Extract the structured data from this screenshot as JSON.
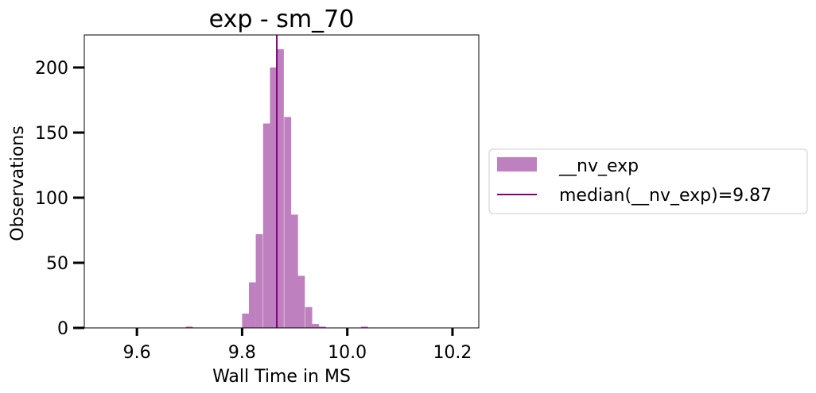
{
  "chart_data": {
    "type": "bar",
    "title": "exp - sm_70",
    "xlabel": "Wall Time in MS",
    "ylabel": "Observations",
    "xlim": [
      9.5,
      10.25
    ],
    "ylim": [
      0,
      225
    ],
    "x_ticks": [
      9.6,
      9.8,
      10.0,
      10.2
    ],
    "x_tick_labels": [
      "9.6",
      "9.8",
      "10.0",
      "10.2"
    ],
    "y_ticks": [
      0,
      50,
      100,
      150,
      200
    ],
    "y_tick_labels": [
      "0",
      "50",
      "100",
      "150",
      "200"
    ],
    "bin_width": 0.0133,
    "bins": [
      {
        "x": 9.693,
        "value": 1
      },
      {
        "x": 9.8,
        "value": 11
      },
      {
        "x": 9.813,
        "value": 35
      },
      {
        "x": 9.826,
        "value": 72
      },
      {
        "x": 9.84,
        "value": 157
      },
      {
        "x": 9.853,
        "value": 200
      },
      {
        "x": 9.866,
        "value": 214
      },
      {
        "x": 9.88,
        "value": 162
      },
      {
        "x": 9.893,
        "value": 87
      },
      {
        "x": 9.906,
        "value": 40
      },
      {
        "x": 9.92,
        "value": 16
      },
      {
        "x": 9.933,
        "value": 3
      },
      {
        "x": 9.946,
        "value": 1
      },
      {
        "x": 10.026,
        "value": 1
      }
    ],
    "bar_color": "#bf80bf",
    "median": {
      "value": 9.866,
      "color": "#800080"
    },
    "legend": {
      "placement": "center-right outside",
      "entries": [
        {
          "label": "__nv_exp",
          "kind": "patch",
          "color": "#bf80bf"
        },
        {
          "label": "median(__nv_exp)=9.87",
          "kind": "line",
          "color": "#800080"
        }
      ]
    },
    "grid": false
  }
}
